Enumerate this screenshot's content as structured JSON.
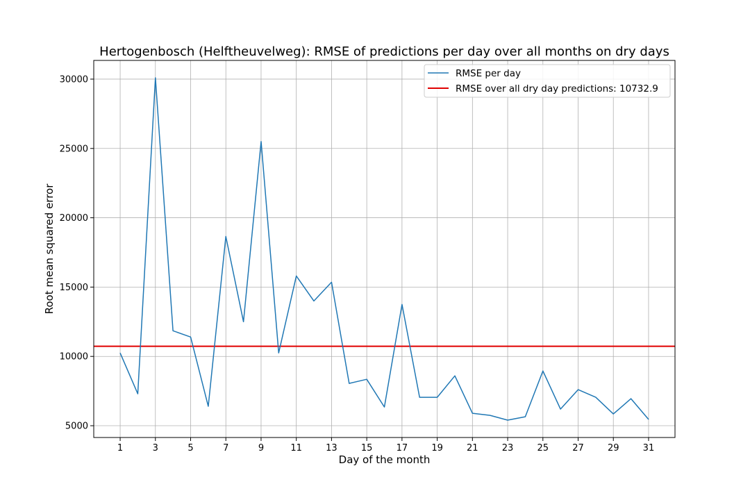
{
  "chart_data": {
    "type": "line",
    "title": "Hertogenbosch (Helftheuvelweg): RMSE of predictions per day over all months on dry days",
    "xlabel": "Day of the month",
    "ylabel": "Root mean squared error",
    "xlim": [
      -0.5,
      32.5
    ],
    "ylim": [
      4150,
      31350
    ],
    "x_ticks": [
      1,
      3,
      5,
      7,
      9,
      11,
      13,
      15,
      17,
      19,
      21,
      23,
      25,
      27,
      29,
      31
    ],
    "y_ticks": [
      5000,
      10000,
      15000,
      20000,
      25000,
      30000
    ],
    "grid": true,
    "legend_position": "top-right",
    "series": [
      {
        "name": "RMSE per day",
        "color": "#1f77b4",
        "x": [
          1,
          2,
          3,
          4,
          5,
          6,
          7,
          8,
          9,
          10,
          11,
          12,
          13,
          14,
          15,
          16,
          17,
          18,
          19,
          20,
          21,
          22,
          23,
          24,
          25,
          26,
          27,
          28,
          29,
          30,
          31
        ],
        "values": [
          10250,
          7300,
          30100,
          11850,
          11400,
          6400,
          18650,
          12500,
          25500,
          10250,
          15800,
          14000,
          15350,
          8050,
          8350,
          6350,
          13750,
          7050,
          7050,
          8600,
          5900,
          5750,
          5400,
          5650,
          8950,
          6200,
          7600,
          7050,
          5850,
          6950,
          5450
        ]
      }
    ],
    "reference_lines": [
      {
        "name": "RMSE over all dry day predictions: 10732.9",
        "value": 10732.9,
        "color": "#e00000"
      }
    ]
  }
}
